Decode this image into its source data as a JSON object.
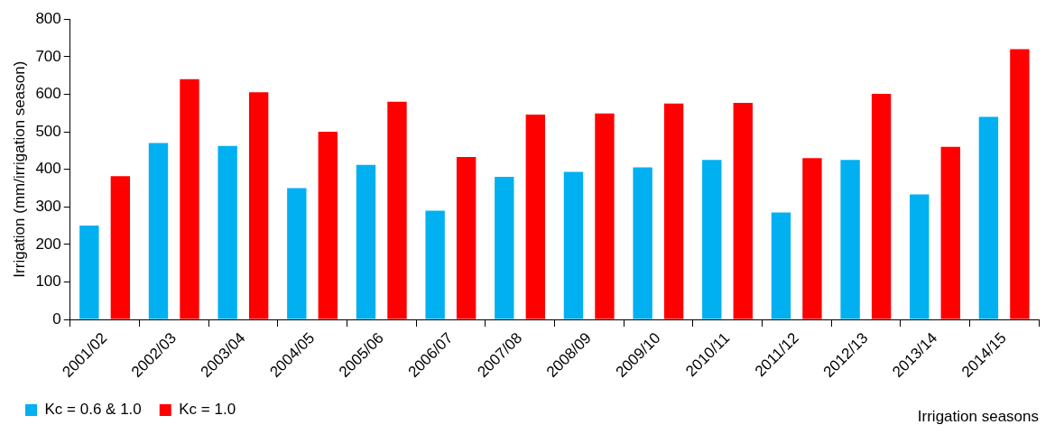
{
  "chart_data": {
    "type": "bar",
    "xlabel": "Irrigation seasons",
    "ylabel": "Irrigation (mm/irrigation season)",
    "categories": [
      "2001/02",
      "2002/03",
      "2003/04",
      "2004/05",
      "2005/06",
      "2006/07",
      "2007/08",
      "2008/09",
      "2009/10",
      "2010/11",
      "2011/12",
      "2012/13",
      "2013/14",
      "2014/15"
    ],
    "series": [
      {
        "name": "Kc = 0.6 & 1.0",
        "color": "#00b0f0",
        "values": [
          250,
          470,
          462,
          350,
          412,
          290,
          380,
          393,
          405,
          425,
          285,
          425,
          333,
          540
        ]
      },
      {
        "name": "Kc = 1.0",
        "color": "#ff0000",
        "values": [
          382,
          640,
          605,
          500,
          580,
          433,
          546,
          549,
          575,
          577,
          430,
          601,
          460,
          720
        ]
      }
    ],
    "ylim": [
      0,
      800
    ],
    "yticks": [
      0,
      100,
      200,
      300,
      400,
      500,
      600,
      700,
      800
    ],
    "grid": false,
    "legend": "bottom left"
  }
}
